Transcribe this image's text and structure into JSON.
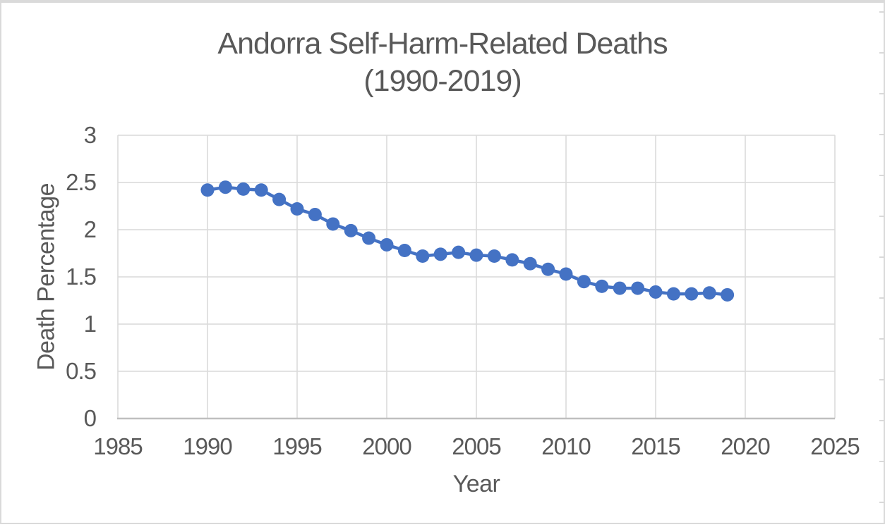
{
  "frame": {
    "background": "#FFFFFF",
    "border_color": "#DADADA"
  },
  "chart_data": {
    "type": "line",
    "title": "Andorra Self-Harm-Related Deaths (1990-2019)",
    "title_lines": [
      "Andorra Self-Harm-Related Deaths",
      "(1990-2019)"
    ],
    "xlabel": "Year",
    "ylabel": "Death Percentage",
    "legend_position": "none",
    "grid": true,
    "xlim": [
      1985,
      2025
    ],
    "ylim": [
      0,
      3
    ],
    "x_tick_values": [
      1985,
      1990,
      1995,
      2000,
      2005,
      2010,
      2015,
      2020,
      2025
    ],
    "x_tick_labels": [
      "1985",
      "1990",
      "1995",
      "2000",
      "2005",
      "2010",
      "2015",
      "2020",
      "2025"
    ],
    "y_tick_values": [
      0,
      0.5,
      1,
      1.5,
      2,
      2.5,
      3
    ],
    "y_tick_labels": [
      "0",
      "0.5",
      "1",
      "1.5",
      "2",
      "2.5",
      "3"
    ],
    "series": [
      {
        "name": "Death Percentage",
        "x": [
          1990,
          1991,
          1992,
          1993,
          1994,
          1995,
          1996,
          1997,
          1998,
          1999,
          2000,
          2001,
          2002,
          2003,
          2004,
          2005,
          2006,
          2007,
          2008,
          2009,
          2010,
          2011,
          2012,
          2013,
          2014,
          2015,
          2016,
          2017,
          2018,
          2019
        ],
        "values": [
          2.42,
          2.45,
          2.43,
          2.42,
          2.32,
          2.22,
          2.16,
          2.06,
          1.99,
          1.91,
          1.84,
          1.78,
          1.72,
          1.74,
          1.76,
          1.73,
          1.72,
          1.68,
          1.64,
          1.58,
          1.53,
          1.45,
          1.4,
          1.38,
          1.38,
          1.34,
          1.32,
          1.32,
          1.33,
          1.31
        ]
      }
    ],
    "colors": {
      "series": "#4472C4",
      "gridline": "#D9D9D9",
      "axis_line": "#BFBFBF",
      "text": "#595959"
    }
  }
}
